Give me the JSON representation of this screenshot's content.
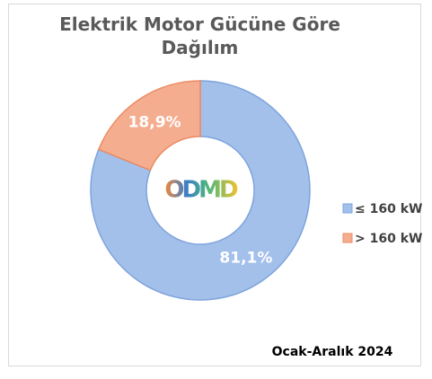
{
  "chart_data": {
    "type": "donut",
    "title": "Elektrik Motor Gücüne Göre Dağılım",
    "logo": "ODMD",
    "footnote": "Ocak-Aralık 2024",
    "categories": [
      "≤ 160 kW",
      "> 160 kW"
    ],
    "values": [
      81.1,
      18.9
    ],
    "value_labels": [
      "81,1%",
      "18,9%"
    ],
    "colors": [
      "#a3c0ea",
      "#f5ad90"
    ],
    "edge_colors": [
      "#7ea3dc",
      "#ec8a62"
    ],
    "legend": "right"
  }
}
